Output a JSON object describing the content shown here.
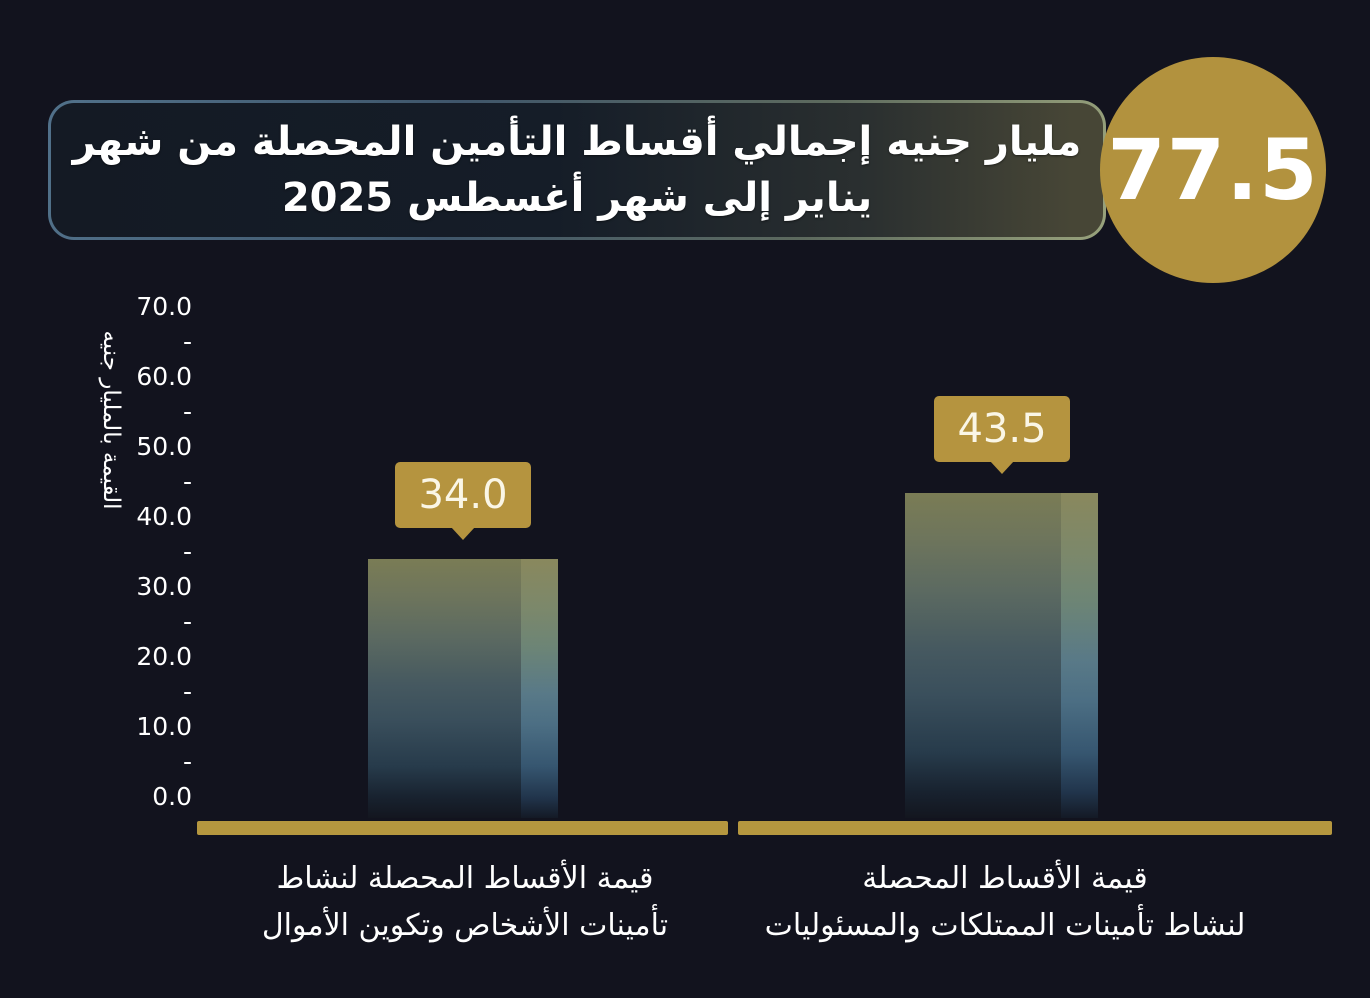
{
  "page": {
    "background": "#12131e",
    "accent_gold": "#b2923e"
  },
  "header": {
    "title_line1": "مليار جنيه إجمالي أقساط التأمين المحصلة من شهر",
    "title_line2": "يناير إلى شهر أغسطس 2025",
    "badge_value": "77.5"
  },
  "chart_data": {
    "type": "bar",
    "title": "77.5 مليار جنيه إجمالي أقساط التأمين المحصلة من شهر يناير إلى شهر أغسطس 2025",
    "total_badge": "77.5",
    "ylabel": "القيمة بالمليار جنيه",
    "xlabel": "",
    "categories": [
      "قيمة الأقساط المحصلة لنشاط تأمينات الأشخاص وتكوين الأموال",
      "قيمة الأقساط المحصلة لنشاط تأمينات الممتلكات والمسئوليات"
    ],
    "values": [
      34.0,
      43.5
    ],
    "value_labels": [
      "34.0",
      "43.5"
    ],
    "ylim": [
      0,
      70
    ],
    "y_major_step": 10,
    "y_minor_step": 5,
    "y_tick_labels": [
      "70.0",
      "-",
      "60.0",
      "-",
      "50.0",
      "-",
      "40.0",
      "-",
      "30.0",
      "-",
      "20.0",
      "-",
      "10.0",
      "-",
      "0.0"
    ],
    "grid": false,
    "legend": false,
    "bar_gradient": [
      "#7a7c55",
      "#3a4f5c",
      "#13161f"
    ],
    "callout_color": "#b5943f",
    "baseline_color": "#b5973f"
  },
  "categories_display": {
    "cat1_line1": "قيمة الأقساط المحصلة لنشاط",
    "cat1_line2": "تأمينات الأشخاص وتكوين الأموال",
    "cat2_line1": "قيمة الأقساط المحصلة",
    "cat2_line2": "لنشاط تأمينات الممتلكات والمسئوليات"
  }
}
